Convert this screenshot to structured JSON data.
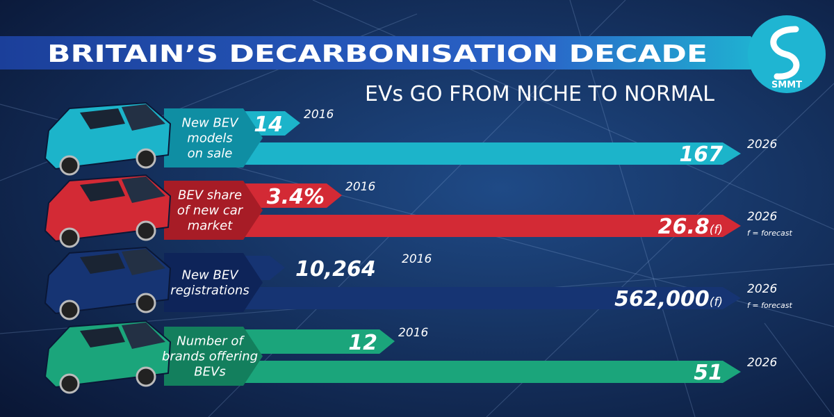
{
  "header": {
    "title": "BRITAIN’S DECARBONISATION DECADE",
    "subtitle": "EVs GO FROM NICHE TO NORMAL",
    "logo": "SMMT"
  },
  "rows": [
    {
      "label": [
        "New BEV",
        "models",
        "on sale"
      ],
      "start": {
        "value": "14",
        "year": "2016"
      },
      "end": {
        "value": "167",
        "year": "2026"
      }
    },
    {
      "label": [
        "BEV share",
        "of new car",
        "market"
      ],
      "start": {
        "value": "3.4%",
        "year": "2016"
      },
      "end": {
        "value": "26.8",
        "suffix": "(f)",
        "year": "2026",
        "note": "f = forecast"
      }
    },
    {
      "label": [
        "New BEV",
        "registrations"
      ],
      "start": {
        "value": "10,264",
        "year": "2016"
      },
      "end": {
        "value": "562,000",
        "suffix": "(f)",
        "year": "2026",
        "note": "f = forecast"
      }
    },
    {
      "label": [
        "Number of",
        "brands offering",
        "BEVs"
      ],
      "start": {
        "value": "12",
        "year": "2016"
      },
      "end": {
        "value": "51",
        "year": "2026"
      }
    }
  ]
}
